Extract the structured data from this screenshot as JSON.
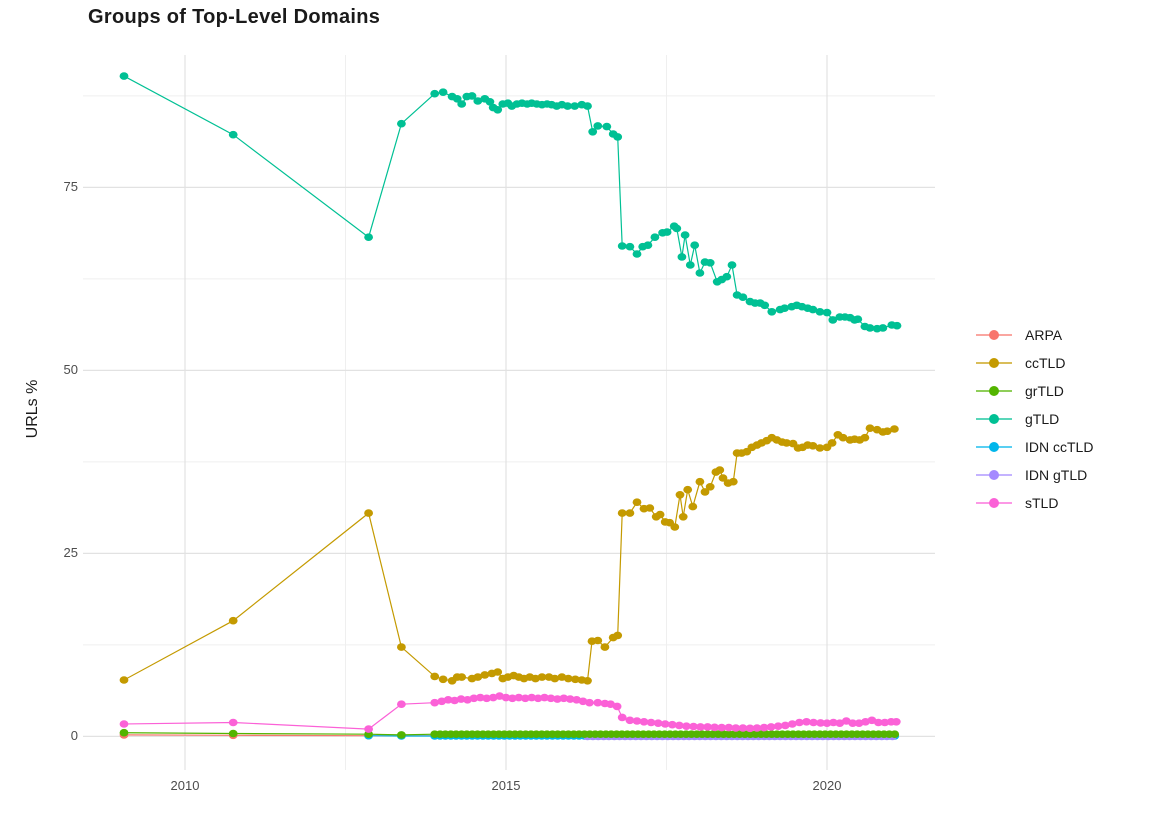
{
  "chart_data": {
    "type": "line",
    "title": "Groups of Top-Level Domains",
    "xlabel": "",
    "ylabel": "URLs %",
    "grid": "on",
    "legend_position": "right",
    "xlim": [
      2008.5,
      2021.7
    ],
    "ylim": [
      -4.6,
      93.1
    ],
    "x_ticks": {
      "major": [
        2010,
        2015,
        2020
      ],
      "minor": [
        2012.5,
        2017.5
      ],
      "labels": [
        "2010",
        "2015",
        "2020"
      ]
    },
    "y_ticks": {
      "major": [
        0,
        25,
        50,
        75
      ],
      "minor": [
        12.5,
        37.5,
        62.5,
        87.5
      ],
      "labels": [
        "0",
        "25",
        "50",
        "75"
      ]
    },
    "draw_order": [
      "ARPA",
      "IDN ccTLD",
      "IDN gTLD",
      "grTLD",
      "ccTLD",
      "gTLD",
      "sTLD"
    ],
    "series": [
      {
        "name": "ARPA",
        "color": "#F8766D",
        "points": [
          [
            2009.05,
            0.2
          ],
          [
            2010.75,
            0.15
          ],
          [
            2012.86,
            0.1
          ],
          [
            2013.37,
            0.1
          ]
        ],
        "runs": [
          {
            "from": 2013.89,
            "to": 2021.09,
            "step": 0.0833,
            "value": 0.1
          }
        ]
      },
      {
        "name": "ccTLD",
        "color": "#C49A00",
        "points": [
          [
            2009.05,
            7.7
          ],
          [
            2010.75,
            15.8
          ],
          [
            2012.86,
            30.5
          ],
          [
            2013.37,
            12.2
          ],
          [
            2013.89,
            8.2
          ],
          [
            2014.02,
            7.8
          ],
          [
            2014.16,
            7.6
          ],
          [
            2014.24,
            8.1
          ],
          [
            2014.31,
            8.1
          ],
          [
            2014.47,
            7.9
          ],
          [
            2014.56,
            8.1
          ],
          [
            2014.67,
            8.4
          ],
          [
            2014.78,
            8.6
          ],
          [
            2014.87,
            8.8
          ],
          [
            2014.95,
            7.9
          ],
          [
            2015.03,
            8.1
          ],
          [
            2015.12,
            8.3
          ],
          [
            2015.2,
            8.1
          ],
          [
            2015.28,
            7.9
          ],
          [
            2015.37,
            8.1
          ],
          [
            2015.46,
            7.9
          ],
          [
            2015.56,
            8.1
          ],
          [
            2015.67,
            8.1
          ],
          [
            2015.76,
            7.9
          ],
          [
            2015.87,
            8.1
          ],
          [
            2015.97,
            7.9
          ],
          [
            2016.08,
            7.8
          ],
          [
            2016.18,
            7.7
          ],
          [
            2016.27,
            7.6
          ],
          [
            2016.34,
            13.0
          ],
          [
            2016.43,
            13.1
          ],
          [
            2016.54,
            12.2
          ],
          [
            2016.67,
            13.5
          ],
          [
            2016.74,
            13.8
          ],
          [
            2016.81,
            30.5
          ],
          [
            2016.93,
            30.5
          ],
          [
            2017.04,
            32.0
          ],
          [
            2017.15,
            31.1
          ],
          [
            2017.24,
            31.2
          ],
          [
            2017.34,
            30.0
          ],
          [
            2017.4,
            30.3
          ],
          [
            2017.48,
            29.3
          ],
          [
            2017.55,
            29.2
          ],
          [
            2017.63,
            28.6
          ],
          [
            2017.71,
            33.0
          ],
          [
            2017.76,
            30.0
          ],
          [
            2017.83,
            33.7
          ],
          [
            2017.91,
            31.4
          ],
          [
            2018.02,
            34.8
          ],
          [
            2018.1,
            33.4
          ],
          [
            2018.18,
            34.1
          ],
          [
            2018.27,
            36.1
          ],
          [
            2018.33,
            36.4
          ],
          [
            2018.38,
            35.3
          ],
          [
            2018.46,
            34.6
          ],
          [
            2018.54,
            34.8
          ],
          [
            2018.6,
            38.7
          ],
          [
            2018.67,
            38.7
          ],
          [
            2018.75,
            38.9
          ],
          [
            2018.83,
            39.5
          ],
          [
            2018.91,
            39.8
          ],
          [
            2018.98,
            40.1
          ],
          [
            2019.06,
            40.4
          ],
          [
            2019.14,
            40.8
          ],
          [
            2019.22,
            40.5
          ],
          [
            2019.3,
            40.2
          ],
          [
            2019.37,
            40.1
          ],
          [
            2019.47,
            40.0
          ],
          [
            2019.55,
            39.4
          ],
          [
            2019.62,
            39.5
          ],
          [
            2019.7,
            39.8
          ],
          [
            2019.78,
            39.7
          ],
          [
            2019.89,
            39.4
          ],
          [
            2020.0,
            39.5
          ],
          [
            2020.08,
            40.1
          ],
          [
            2020.17,
            41.2
          ],
          [
            2020.25,
            40.8
          ],
          [
            2020.36,
            40.5
          ],
          [
            2020.43,
            40.6
          ],
          [
            2020.51,
            40.5
          ],
          [
            2020.59,
            40.8
          ],
          [
            2020.67,
            42.1
          ],
          [
            2020.78,
            41.9
          ],
          [
            2020.87,
            41.6
          ],
          [
            2020.94,
            41.7
          ],
          [
            2021.05,
            42.0
          ]
        ]
      },
      {
        "name": "grTLD",
        "color": "#53B400",
        "points": [
          [
            2009.05,
            0.5
          ],
          [
            2010.75,
            0.4
          ],
          [
            2012.86,
            0.3
          ],
          [
            2013.37,
            0.2
          ]
        ],
        "runs": [
          {
            "from": 2013.89,
            "to": 2021.09,
            "step": 0.0833,
            "value": 0.3
          }
        ]
      },
      {
        "name": "gTLD",
        "color": "#00C094",
        "points": [
          [
            2009.05,
            90.2
          ],
          [
            2010.75,
            82.2
          ],
          [
            2012.86,
            68.2
          ],
          [
            2013.37,
            83.7
          ],
          [
            2013.89,
            87.8
          ],
          [
            2014.02,
            88.0
          ],
          [
            2014.16,
            87.4
          ],
          [
            2014.24,
            87.1
          ],
          [
            2014.31,
            86.4
          ],
          [
            2014.39,
            87.4
          ],
          [
            2014.47,
            87.5
          ],
          [
            2014.56,
            86.8
          ],
          [
            2014.67,
            87.1
          ],
          [
            2014.75,
            86.7
          ],
          [
            2014.8,
            85.9
          ],
          [
            2014.87,
            85.6
          ],
          [
            2014.95,
            86.4
          ],
          [
            2015.03,
            86.5
          ],
          [
            2015.09,
            86.1
          ],
          [
            2015.17,
            86.4
          ],
          [
            2015.25,
            86.5
          ],
          [
            2015.33,
            86.4
          ],
          [
            2015.4,
            86.5
          ],
          [
            2015.48,
            86.4
          ],
          [
            2015.56,
            86.3
          ],
          [
            2015.64,
            86.4
          ],
          [
            2015.71,
            86.3
          ],
          [
            2015.79,
            86.1
          ],
          [
            2015.87,
            86.3
          ],
          [
            2015.96,
            86.1
          ],
          [
            2016.07,
            86.1
          ],
          [
            2016.18,
            86.3
          ],
          [
            2016.27,
            86.1
          ],
          [
            2016.35,
            82.6
          ],
          [
            2016.43,
            83.4
          ],
          [
            2016.57,
            83.3
          ],
          [
            2016.67,
            82.3
          ],
          [
            2016.74,
            81.9
          ],
          [
            2016.81,
            67.0
          ],
          [
            2016.93,
            66.9
          ],
          [
            2017.04,
            65.9
          ],
          [
            2017.13,
            66.9
          ],
          [
            2017.21,
            67.1
          ],
          [
            2017.32,
            68.2
          ],
          [
            2017.44,
            68.8
          ],
          [
            2017.51,
            68.9
          ],
          [
            2017.62,
            69.7
          ],
          [
            2017.66,
            69.4
          ],
          [
            2017.74,
            65.5
          ],
          [
            2017.79,
            68.5
          ],
          [
            2017.87,
            64.4
          ],
          [
            2017.94,
            67.1
          ],
          [
            2018.02,
            63.3
          ],
          [
            2018.1,
            64.8
          ],
          [
            2018.18,
            64.7
          ],
          [
            2018.29,
            62.1
          ],
          [
            2018.36,
            62.4
          ],
          [
            2018.44,
            62.8
          ],
          [
            2018.52,
            64.4
          ],
          [
            2018.6,
            60.3
          ],
          [
            2018.69,
            60.0
          ],
          [
            2018.8,
            59.4
          ],
          [
            2018.88,
            59.2
          ],
          [
            2018.96,
            59.2
          ],
          [
            2019.03,
            58.9
          ],
          [
            2019.14,
            58.0
          ],
          [
            2019.27,
            58.3
          ],
          [
            2019.34,
            58.5
          ],
          [
            2019.45,
            58.7
          ],
          [
            2019.53,
            58.9
          ],
          [
            2019.61,
            58.7
          ],
          [
            2019.7,
            58.5
          ],
          [
            2019.78,
            58.3
          ],
          [
            2019.89,
            58.0
          ],
          [
            2020.0,
            57.9
          ],
          [
            2020.09,
            56.9
          ],
          [
            2020.2,
            57.3
          ],
          [
            2020.28,
            57.3
          ],
          [
            2020.36,
            57.2
          ],
          [
            2020.43,
            56.9
          ],
          [
            2020.48,
            57.0
          ],
          [
            2020.59,
            56.0
          ],
          [
            2020.67,
            55.8
          ],
          [
            2020.78,
            55.7
          ],
          [
            2020.87,
            55.8
          ],
          [
            2021.01,
            56.2
          ],
          [
            2021.09,
            56.1
          ]
        ]
      },
      {
        "name": "IDN ccTLD",
        "color": "#00B6EB",
        "points": [
          [
            2012.86,
            0.1
          ],
          [
            2013.37,
            0.05
          ]
        ],
        "runs": [
          {
            "from": 2013.89,
            "to": 2021.09,
            "step": 0.0833,
            "value": 0.05
          }
        ]
      },
      {
        "name": "IDN gTLD",
        "color": "#A58AFF",
        "points": [],
        "runs": [
          {
            "from": 2016.27,
            "to": 2021.09,
            "step": 0.0833,
            "value": 0.0
          }
        ]
      },
      {
        "name": "sTLD",
        "color": "#FB61D7",
        "points": [
          [
            2009.05,
            1.7
          ],
          [
            2010.75,
            1.9
          ],
          [
            2012.86,
            1.0
          ],
          [
            2013.37,
            4.4
          ],
          [
            2013.89,
            4.6
          ],
          [
            2014.0,
            4.8
          ],
          [
            2014.1,
            5.0
          ],
          [
            2014.2,
            4.9
          ],
          [
            2014.3,
            5.1
          ],
          [
            2014.4,
            5.0
          ],
          [
            2014.5,
            5.2
          ],
          [
            2014.6,
            5.3
          ],
          [
            2014.7,
            5.2
          ],
          [
            2014.8,
            5.3
          ],
          [
            2014.9,
            5.5
          ],
          [
            2015.0,
            5.3
          ],
          [
            2015.1,
            5.2
          ],
          [
            2015.2,
            5.3
          ],
          [
            2015.3,
            5.2
          ],
          [
            2015.4,
            5.3
          ],
          [
            2015.5,
            5.2
          ],
          [
            2015.6,
            5.3
          ],
          [
            2015.7,
            5.2
          ],
          [
            2015.8,
            5.1
          ],
          [
            2015.9,
            5.2
          ],
          [
            2016.0,
            5.1
          ],
          [
            2016.1,
            5.0
          ],
          [
            2016.2,
            4.8
          ],
          [
            2016.3,
            4.6
          ],
          [
            2016.43,
            4.6
          ],
          [
            2016.54,
            4.5
          ],
          [
            2016.63,
            4.4
          ],
          [
            2016.73,
            4.1
          ],
          [
            2016.81,
            2.6
          ],
          [
            2016.93,
            2.2
          ],
          [
            2017.04,
            2.1
          ],
          [
            2017.15,
            2.0
          ],
          [
            2017.26,
            1.9
          ],
          [
            2017.37,
            1.8
          ],
          [
            2017.48,
            1.7
          ],
          [
            2017.59,
            1.6
          ],
          [
            2017.7,
            1.5
          ],
          [
            2017.81,
            1.4
          ],
          [
            2017.92,
            1.35
          ],
          [
            2018.03,
            1.3
          ],
          [
            2018.14,
            1.3
          ],
          [
            2018.25,
            1.25
          ],
          [
            2018.36,
            1.2
          ],
          [
            2018.47,
            1.2
          ],
          [
            2018.58,
            1.15
          ],
          [
            2018.69,
            1.15
          ],
          [
            2018.8,
            1.1
          ],
          [
            2018.91,
            1.15
          ],
          [
            2019.02,
            1.2
          ],
          [
            2019.13,
            1.3
          ],
          [
            2019.24,
            1.4
          ],
          [
            2019.35,
            1.5
          ],
          [
            2019.46,
            1.7
          ],
          [
            2019.57,
            1.9
          ],
          [
            2019.68,
            2.0
          ],
          [
            2019.79,
            1.9
          ],
          [
            2019.9,
            1.85
          ],
          [
            2020.0,
            1.8
          ],
          [
            2020.1,
            1.9
          ],
          [
            2020.2,
            1.8
          ],
          [
            2020.3,
            2.1
          ],
          [
            2020.4,
            1.8
          ],
          [
            2020.5,
            1.8
          ],
          [
            2020.6,
            2.0
          ],
          [
            2020.7,
            2.2
          ],
          [
            2020.8,
            1.9
          ],
          [
            2020.9,
            1.9
          ],
          [
            2021.0,
            2.0
          ],
          [
            2021.08,
            2.0
          ]
        ]
      }
    ]
  },
  "style": {
    "grid_major_color": "#e2e2e2",
    "grid_minor_color": "#efefef",
    "tick_label_color": "#4d4d4d",
    "text_color": "#1a1a1a",
    "background": "#ffffff"
  }
}
